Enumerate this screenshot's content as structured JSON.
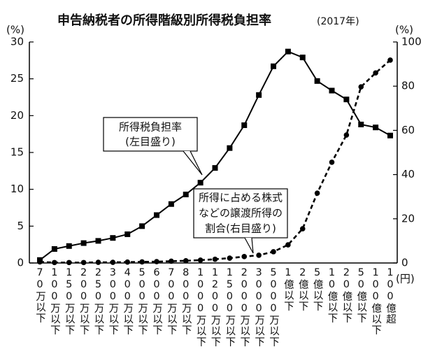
{
  "chart_data": {
    "type": "line",
    "title": "申告納税者の所得階級別所得税負担率",
    "subtitle": "(2017年)",
    "y_label": "(%)",
    "y2_label": "(%)",
    "x_unit": "(円)",
    "categories": [
      "70万以下",
      "100万以下",
      "150万以下",
      "200万以下",
      "250万以下",
      "300万以下",
      "400万以下",
      "500万以下",
      "600万以下",
      "700万以下",
      "800万以下",
      "1000万以下",
      "1200万以下",
      "1500万以下",
      "2000万以下",
      "3000万以下",
      "5000万以下",
      "1億以下",
      "2億以下",
      "5億以下",
      "10億以下",
      "20億以下",
      "50億以下",
      "100億以下",
      "100億超"
    ],
    "series": [
      {
        "name": "所得税負担率",
        "color": "#000000",
        "marker": "square",
        "dash": false,
        "values": [
          0.4,
          1.9,
          2.3,
          2.7,
          3.0,
          3.4,
          3.9,
          5.0,
          6.5,
          8.0,
          9.3,
          10.9,
          12.9,
          15.6,
          18.7,
          22.8,
          26.7,
          28.7,
          27.9,
          24.7,
          23.4,
          22.2,
          18.8,
          18.4,
          17.3
        ]
      },
      {
        "name": "所得に占める株式などの譲渡所得の割合",
        "color": "#000000",
        "marker": "circle",
        "dash": true,
        "axis": "y2",
        "values": [
          0.5,
          0.2,
          0.2,
          0.2,
          0.3,
          0.3,
          0.4,
          0.5,
          0.6,
          0.8,
          1.0,
          1.3,
          1.7,
          2.2,
          2.9,
          3.5,
          5.1,
          8.2,
          15.5,
          31.6,
          45.6,
          57.9,
          79.7,
          86.0,
          91.8
        ]
      }
    ],
    "annotations": [
      {
        "lines": [
          "所得税負担率",
          "(左目盛り)"
        ]
      },
      {
        "lines": [
          "所得に占める株式",
          "などの譲渡所得の",
          "割合(右目盛り)"
        ]
      }
    ],
    "ylim": [
      0,
      30
    ],
    "yticks": [
      0,
      5,
      10,
      15,
      20,
      25,
      30
    ],
    "y2lim": [
      0,
      100
    ],
    "y2ticks": [
      0,
      20,
      40,
      60,
      80,
      100
    ]
  }
}
